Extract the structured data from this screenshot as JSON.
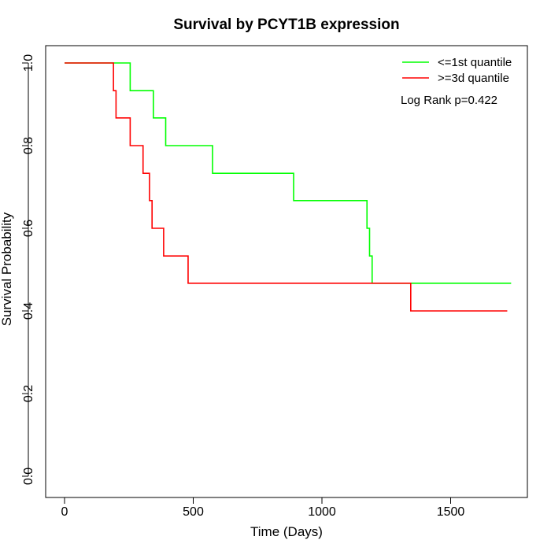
{
  "chart_data": {
    "type": "line",
    "title": "Survival by PCYT1B expression",
    "xlabel": "Time (Days)",
    "ylabel": "Survival Probability",
    "xlim": [
      0,
      1730
    ],
    "ylim": [
      0,
      1
    ],
    "xticks": [
      0,
      500,
      1000,
      1500
    ],
    "xtick_labels": [
      "0",
      "500",
      "1000",
      "1500"
    ],
    "yticks": [
      0,
      0.2,
      0.4,
      0.6,
      0.8,
      1
    ],
    "ytick_labels": [
      "0.0",
      "0.2",
      "0.4",
      "0.6",
      "0.8",
      "1.0"
    ],
    "grid": false,
    "legend_position": "top-right",
    "annotation": "Log Rank p=0.422",
    "series": [
      {
        "name": "<=1st quantile",
        "color": "#00ff00",
        "step": true,
        "x": [
          0,
          255,
          345,
          393,
          575,
          890,
          1175,
          1185,
          1195,
          1735
        ],
        "y": [
          1.0,
          0.933,
          0.867,
          0.8,
          0.733,
          0.667,
          0.6,
          0.533,
          0.467,
          0.467
        ]
      },
      {
        "name": ">=3d quantile",
        "color": "#ff0000",
        "step": true,
        "x": [
          0,
          190,
          200,
          255,
          305,
          330,
          340,
          385,
          480,
          1345,
          1720
        ],
        "y": [
          1.0,
          0.933,
          0.867,
          0.8,
          0.733,
          0.667,
          0.6,
          0.533,
          0.467,
          0.4,
          0.4
        ]
      }
    ]
  }
}
